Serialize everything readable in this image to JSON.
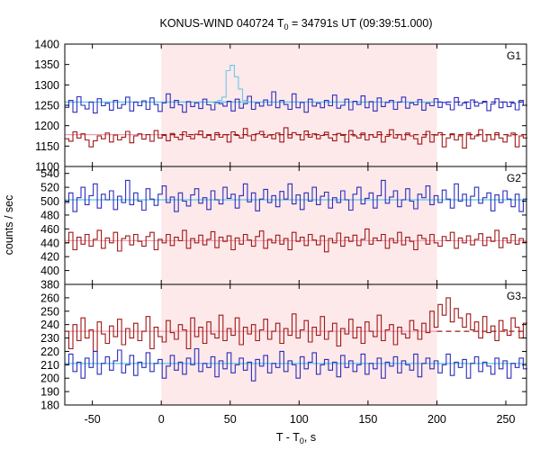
{
  "chart_data": {
    "type": "line",
    "title": {
      "prefix": "KONUS-WIND 040724 T",
      "sub": "0",
      "suffix": " = 34791s UT (09:39:51.000)"
    },
    "xlabel": {
      "prefix": "T - T",
      "sub": "0",
      "suffix": ", s"
    },
    "ylabel": "counts / sec",
    "xlim": [
      -70,
      265
    ],
    "x_ticks": [
      -50,
      0,
      50,
      100,
      150,
      200,
      250
    ],
    "highlight": {
      "x_range": [
        0,
        200
      ],
      "color": "#fde9ea"
    },
    "series_colors": {
      "blue": "#2e2ebc",
      "red": "#a01818",
      "blue_bg": "#55c8e8",
      "red_bg": "#f09ab0",
      "highres": "#6cc8e8"
    },
    "panels": [
      {
        "label": "G1",
        "ylim": [
          1100,
          1400
        ],
        "y_ticks": [
          1100,
          1150,
          1200,
          1250,
          1300,
          1350,
          1400
        ],
        "series": [
          {
            "color_key": "blue",
            "x_start": -70,
            "dt": 2.944,
            "values": [
              1245,
              1262,
              1233,
              1271,
              1250,
              1241,
              1258,
              1231,
              1266,
              1249,
              1255,
              1238,
              1262,
              1243,
              1252,
              1270,
              1236,
              1258,
              1249,
              1261,
              1240,
              1268,
              1252,
              1235,
              1256,
              1278,
              1244,
              1262,
              1251,
              1233,
              1259,
              1247,
              1256,
              1242,
              1265,
              1251,
              1239,
              1257,
              1254,
              1248,
              1260,
              1236,
              1265,
              1243,
              1254,
              1272,
              1240,
              1256,
              1248,
              1263,
              1250,
              1283,
              1244,
              1262,
              1252,
              1240,
              1278,
              1244,
              1257,
              1233,
              1265,
              1248,
              1255,
              1244,
              1262,
              1249,
              1275,
              1243,
              1250,
              1265,
              1239,
              1260,
              1252,
              1273,
              1244,
              1259,
              1236,
              1268,
              1247,
              1257,
              1262,
              1240,
              1258,
              1270,
              1243,
              1256,
              1251,
              1264,
              1238,
              1255,
              1249,
              1266,
              1245,
              1257,
              1252,
              1239,
              1269,
              1250,
              1256,
              1242,
              1263,
              1248,
              1255,
              1260,
              1237,
              1253,
              1266,
              1244,
              1258,
              1247,
              1255,
              1239,
              1262,
              1250
            ]
          },
          {
            "color_key": "red",
            "x_start": -70,
            "dt": 2.944,
            "values": [
              1168,
              1162,
              1185,
              1170,
              1180,
              1165,
              1148,
              1163,
              1175,
              1168,
              1182,
              1160,
              1177,
              1165,
              1172,
              1186,
              1158,
              1175,
              1180,
              1167,
              1178,
              1162,
              1188,
              1170,
              1176,
              1163,
              1181,
              1172,
              1166,
              1185,
              1174,
              1168,
              1179,
              1187,
              1171,
              1176,
              1165,
              1183,
              1172,
              1178,
              1160,
              1185,
              1176,
              1170,
              1193,
              1175,
              1164,
              1180,
              1186,
              1172,
              1177,
              1168,
              1182,
              1160,
              1195,
              1170,
              1183,
              1178,
              1165,
              1187,
              1172,
              1180,
              1168,
              1176,
              1184,
              1170,
              1163,
              1181,
              1176,
              1160,
              1188,
              1175,
              1170,
              1182,
              1165,
              1178,
              1172,
              1185,
              1160,
              1174,
              1190,
              1170,
              1178,
              1166,
              1182,
              1175,
              1168,
              1155,
              1172,
              1186,
              1160,
              1177,
              1183,
              1148,
              1170,
              1180,
              1165,
              1175,
              1145,
              1182,
              1168,
              1175,
              1190,
              1162,
              1178,
              1166,
              1183,
              1170,
              1160,
              1175,
              1182,
              1148,
              1175,
              1170
            ]
          },
          {
            "color_key": "highres",
            "x_start": 38,
            "dt": 3.0,
            "values": [
              1255,
              1262,
              1270,
              1335,
              1348,
              1320,
              1290,
              1262,
              1258
            ]
          }
        ],
        "backgrounds": [
          {
            "color_key": "blue_bg",
            "y": 1258,
            "style": "solid",
            "x_range": [
              -70,
              200
            ]
          },
          {
            "color_key": "blue",
            "y": 1258,
            "style": "dashed",
            "x_range": [
              200,
              265
            ]
          },
          {
            "color_key": "red_bg",
            "y": 1178,
            "style": "solid",
            "x_range": [
              -70,
              0
            ]
          },
          {
            "color_key": "red",
            "y": 1178,
            "style": "dashed",
            "x_range": [
              0,
              265
            ]
          }
        ]
      },
      {
        "label": "G2",
        "ylim": [
          380,
          550
        ],
        "y_ticks": [
          380,
          400,
          420,
          440,
          460,
          480,
          500,
          520,
          540
        ],
        "series": [
          {
            "color_key": "blue",
            "x_start": -70,
            "dt": 2.944,
            "values": [
              498,
              512,
              485,
              505,
              520,
              495,
              508,
              525,
              490,
              510,
              502,
              515,
              488,
              507,
              498,
              530,
              495,
              512,
              500,
              487,
              518,
              503,
              494,
              510,
              522,
              498,
              506,
              485,
              512,
              500,
              493,
              509,
              518,
              497,
              505,
              488,
              515,
              502,
              496,
              520,
              504,
              510,
              490,
              508,
              525,
              499,
              512,
              486,
              503,
              517,
              498,
              508,
              492,
              514,
              503,
              525,
              496,
              509,
              488,
              512,
              500,
              520,
              495,
              507,
              513,
              490,
              505,
              498,
              515,
              502,
              487,
              510,
              520,
              496,
              504,
              512,
              490,
              508,
              530,
              497,
              506,
              515,
              492,
              502,
              518,
              500,
              489,
              510,
              505,
              522,
              495,
              508,
              498,
              516,
              503,
              490,
              525,
              500,
              510,
              493,
              507,
              520,
              497,
              505,
              512,
              486,
              509,
              498,
              515,
              503,
              492,
              510,
              485,
              503
            ]
          },
          {
            "color_key": "red",
            "x_start": -70,
            "dt": 2.944,
            "values": [
              440,
              455,
              430,
              448,
              438,
              452,
              435,
              445,
              458,
              432,
              447,
              440,
              455,
              428,
              446,
              450,
              437,
              452,
              442,
              435,
              449,
              455,
              430,
              445,
              440,
              452,
              436,
              448,
              443,
              458,
              432,
              446,
              440,
              451,
              437,
              445,
              456,
              433,
              448,
              442,
              450,
              430,
              447,
              438,
              452,
              444,
              435,
              449,
              457,
              432,
              445,
              440,
              451,
              438,
              446,
              430,
              455,
              442,
              448,
              436,
              452,
              444,
              437,
              450,
              427,
              446,
              440,
              454,
              435,
              448,
              442,
              451,
              436,
              445,
              460,
              438,
              447,
              443,
              452,
              432,
              446,
              440,
              455,
              437,
              448,
              442,
              430,
              451,
              446,
              438,
              452,
              440,
              435,
              449,
              443,
              455,
              432,
              447,
              440,
              450,
              437,
              445,
              453,
              436,
              448,
              442,
              458,
              433,
              447,
              440,
              452,
              438,
              446,
              441
            ]
          }
        ],
        "backgrounds": [
          {
            "color_key": "blue_bg",
            "y": 502,
            "style": "solid",
            "x_range": [
              -70,
              265
            ]
          },
          {
            "color_key": "red_bg",
            "y": 443,
            "style": "solid",
            "x_range": [
              -70,
              265
            ]
          }
        ]
      },
      {
        "label": "G3",
        "ylim": [
          180,
          270
        ],
        "y_ticks": [
          180,
          190,
          200,
          210,
          220,
          230,
          240,
          250,
          260
        ],
        "series": [
          {
            "color_key": "red",
            "x_start": -70,
            "dt": 2.944,
            "values": [
              235,
              222,
              240,
              228,
              245,
              230,
              236,
              220,
              242,
              233,
              226,
              239,
              231,
              244,
              225,
              237,
              230,
              241,
              228,
              235,
              246,
              222,
              238,
              231,
              227,
              243,
              234,
              229,
              240,
              236,
              222,
              245,
              231,
              238,
              226,
              242,
              233,
              230,
              247,
              228,
              237,
              232,
              245,
              225,
              238,
              233,
              240,
              228,
              236,
              244,
              229,
              235,
              241,
              226,
              237,
              232,
              248,
              230,
              236,
              243,
              227,
              238,
              232,
              246,
              229,
              235,
              241,
              224,
              237,
              233,
              244,
              230,
              238,
              226,
              242,
              235,
              231,
              247,
              228,
              236,
              240,
              225,
              238,
              233,
              230,
              243,
              236,
              229,
              241,
              234,
              250,
              238,
              255,
              247,
              260,
              242,
              252,
              245,
              238,
              248,
              236,
              242,
              230,
              246,
              234,
              239,
              228,
              243,
              236,
              232,
              245,
              238,
              230,
              241
            ]
          },
          {
            "color_key": "blue",
            "x_start": -70,
            "dt": 2.944,
            "values": [
              210,
              218,
              205,
              212,
              200,
              215,
              208,
              220,
              203,
              211,
              216,
              206,
              213,
              221,
              204,
              210,
              217,
              202,
              212,
              208,
              219,
              205,
              211,
              214,
              200,
              209,
              217,
              206,
              212,
              203,
              215,
              210,
              222,
              205,
              211,
              208,
              216,
              201,
              213,
              207,
              219,
              204,
              210,
              215,
              206,
              212,
              198,
              214,
              209,
              217,
              204,
              211,
              208,
              220,
              205,
              213,
              210,
              200,
              216,
              207,
              212,
              219,
              203,
              210,
              214,
              206,
              212,
              201,
              217,
              208,
              213,
              205,
              210,
              218,
              203,
              211,
              207,
              215,
              200,
              212,
              209,
              216,
              204,
              213,
              210,
              206,
              218,
              201,
              211,
              215,
              207,
              213,
              204,
              210,
              218,
              202,
              212,
              208,
              214,
              200,
              211,
              216,
              205,
              212,
              209,
              203,
              215,
              207,
              213,
              200,
              211,
              208,
              215,
              207
            ]
          }
        ],
        "backgrounds": [
          {
            "color_key": "red_bg",
            "y": 235,
            "style": "solid",
            "x_range": [
              -70,
              200
            ]
          },
          {
            "color_key": "red",
            "y": 235,
            "style": "dashed",
            "x_range": [
              200,
              265
            ]
          },
          {
            "color_key": "blue_bg",
            "y": 211,
            "style": "solid",
            "x_range": [
              -70,
              265
            ]
          }
        ]
      }
    ]
  }
}
